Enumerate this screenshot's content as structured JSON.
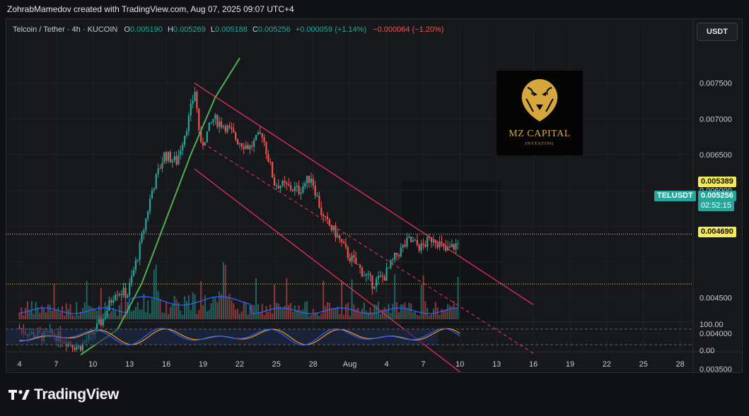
{
  "caption": "ZohrabMamedov created with TradingView.com, Aug 07, 2025 09:07 UTC+4",
  "legend": {
    "symbol": "Telcoin / Tether · 4h · KUCOIN",
    "o_label": "O",
    "o_value": "0.005190",
    "h_label": "H",
    "h_value": "0.005269",
    "l_label": "L",
    "l_value": "0.005188",
    "c_label": "C",
    "c_value": "0.005256",
    "change": "+0.000059 (+1.14%)",
    "change2": "−0.000064 (−1.20%)"
  },
  "currency_button": "USDT",
  "logo": {
    "title": "MZ CAPITAL",
    "subtitle": "INVESTING"
  },
  "brand": "TradingView",
  "price_tags": {
    "upper_level": "0.005389",
    "symbol_tag": "TELUSDT",
    "current_price": "0.005256",
    "countdown": "02:52:15",
    "lower_level": "0.004690"
  },
  "colors": {
    "background": "#17181c",
    "up": "#26a69a",
    "down": "#ef5350",
    "channel": "#e0305a",
    "curve": "#4caf50",
    "volume_ma": "#2962ff",
    "rsi_blue": "#2962ff",
    "rsi_orange": "#ff9800",
    "level_line": "#d8d24a"
  },
  "chart_data": {
    "type": "candlestick",
    "title": "",
    "interval": "4h",
    "y_ticks": [
      "0.007500",
      "0.007000",
      "0.006500",
      "0.006000",
      "0.004500",
      "0.004000",
      "0.003500"
    ],
    "x_ticks": [
      "4",
      "7",
      "10",
      "13",
      "16",
      "19",
      "22",
      "25",
      "28",
      "Aug",
      "4",
      "7",
      "10",
      "13",
      "16",
      "19",
      "22",
      "25",
      "28"
    ],
    "oscillator_ticks": [
      "100.00",
      "0.00"
    ],
    "ylim": [
      0.0034,
      0.0078
    ],
    "horizontal_levels": [
      0.005389,
      0.00469
    ],
    "current_price": 0.005256,
    "price_path": [
      {
        "day": 4,
        "price": 0.00408
      },
      {
        "day": 5,
        "price": 0.004
      },
      {
        "day": 6,
        "price": 0.00396
      },
      {
        "day": 7,
        "price": 0.00398
      },
      {
        "day": 8,
        "price": 0.0039
      },
      {
        "day": 9,
        "price": 0.0038
      },
      {
        "day": 10,
        "price": 0.00395
      },
      {
        "day": 11,
        "price": 0.0042
      },
      {
        "day": 12,
        "price": 0.0046
      },
      {
        "day": 13,
        "price": 0.00455
      },
      {
        "day": 14,
        "price": 0.0052
      },
      {
        "day": 15,
        "price": 0.006
      },
      {
        "day": 16,
        "price": 0.0065
      },
      {
        "day": 17,
        "price": 0.0064
      },
      {
        "day": 18,
        "price": 0.007
      },
      {
        "day": 18.5,
        "price": 0.0074
      },
      {
        "day": 19,
        "price": 0.0066
      },
      {
        "day": 20,
        "price": 0.007
      },
      {
        "day": 21,
        "price": 0.0069
      },
      {
        "day": 22,
        "price": 0.0067
      },
      {
        "day": 23,
        "price": 0.0066
      },
      {
        "day": 24,
        "price": 0.0068
      },
      {
        "day": 25,
        "price": 0.0061
      },
      {
        "day": 26,
        "price": 0.00605
      },
      {
        "day": 27,
        "price": 0.006
      },
      {
        "day": 28,
        "price": 0.0062
      },
      {
        "day": 29,
        "price": 0.0056
      },
      {
        "day": 30,
        "price": 0.0054
      },
      {
        "day": 31,
        "price": 0.0051
      },
      {
        "day": 32,
        "price": 0.0049
      },
      {
        "day": 33,
        "price": 0.0047
      },
      {
        "day": 34,
        "price": 0.0048
      },
      {
        "day": 35,
        "price": 0.0051
      },
      {
        "day": 36,
        "price": 0.0053
      },
      {
        "day": 37,
        "price": 0.0052
      },
      {
        "day": 38,
        "price": 0.00535
      },
      {
        "day": 39,
        "price": 0.00515
      },
      {
        "day": 40,
        "price": 0.00525
      }
    ],
    "channel_upper": [
      {
        "day": 18.3,
        "price": 0.0075
      },
      {
        "day": 46,
        "price": 0.0044
      }
    ],
    "channel_mid": [
      {
        "day": 19,
        "price": 0.00666
      },
      {
        "day": 46,
        "price": 0.00372
      }
    ],
    "channel_lower": [
      {
        "day": 18.3,
        "price": 0.0063
      },
      {
        "day": 40,
        "price": 0.00346
      }
    ],
    "parabolic_curve": [
      {
        "day": 9,
        "price": 0.0037
      },
      {
        "day": 12,
        "price": 0.00405
      },
      {
        "day": 14,
        "price": 0.0047
      },
      {
        "day": 16,
        "price": 0.0056
      },
      {
        "day": 18,
        "price": 0.0065
      },
      {
        "day": 20,
        "price": 0.0073
      },
      {
        "day": 22,
        "price": 0.00785
      }
    ]
  }
}
